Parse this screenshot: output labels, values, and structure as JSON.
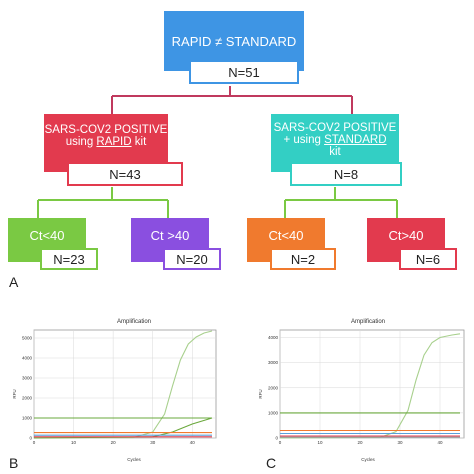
{
  "colors": {
    "top": "#3e95e4",
    "rapid": "#e23a4e",
    "standard": "#33cfc4",
    "green": "#7ac943",
    "purple": "#8a4fe0",
    "orange": "#f07a2e",
    "red": "#e23a4e",
    "connector": "#c0395e"
  },
  "diagram": {
    "top": {
      "title": "RAPID ≠ STANDARD",
      "n": "N=51"
    },
    "rapid": {
      "line1": "SARS-COV2 POSITIVE",
      "line2_pre": "using ",
      "line2_u": "RAPID",
      "line2_post": " kit",
      "n": "N=43"
    },
    "standard": {
      "line1": "SARS-COV2 POSITIVE",
      "line2_pre": "+ using ",
      "line2_u": "STANDARD",
      "line3": "kit",
      "n": "N=8"
    },
    "leaves": [
      {
        "label": "Ct<40",
        "n": "N=23"
      },
      {
        "label": "Ct >40",
        "n": "N=20"
      },
      {
        "label": "Ct<40",
        "n": "N=2"
      },
      {
        "label": "Ct>40",
        "n": "N=6"
      }
    ],
    "panel_label": "A"
  },
  "charts": {
    "B": {
      "panel_label": "B",
      "title": "Amplification",
      "ylabel": "RFU",
      "xlabel": "Cycles",
      "yticks": [
        "0",
        "1000",
        "2000",
        "3000",
        "4000",
        "5000"
      ],
      "xticks": [
        "0",
        "10",
        "20",
        "30",
        "40"
      ]
    },
    "C": {
      "panel_label": "C",
      "title": "Amplification",
      "ylabel": "RFU",
      "xlabel": "Cycles",
      "yticks": [
        "0",
        "1000",
        "2000",
        "3000",
        "4000"
      ],
      "xticks": [
        "0",
        "10",
        "20",
        "30",
        "40"
      ]
    }
  },
  "chart_data": [
    {
      "type": "line",
      "title": "Amplification",
      "xlabel": "Cycles",
      "ylabel": "RFU",
      "xlim": [
        0,
        46
      ],
      "ylim": [
        0,
        5400
      ],
      "grid": true,
      "series": [
        {
          "color": "#a8d08d",
          "x": [
            0,
            25,
            30,
            33,
            35,
            37,
            39,
            41,
            43,
            45
          ],
          "values": [
            0,
            20,
            300,
            1200,
            2600,
            3900,
            4700,
            5050,
            5250,
            5350
          ]
        },
        {
          "color": "#6aa83c",
          "x": [
            0,
            45
          ],
          "values": [
            1000,
            1000
          ]
        },
        {
          "color": "#6aa83c",
          "x": [
            0,
            30,
            35,
            40,
            45
          ],
          "values": [
            0,
            60,
            300,
            700,
            1000
          ]
        },
        {
          "color": "#f07a2e",
          "x": [
            0,
            45
          ],
          "values": [
            270,
            270
          ]
        },
        {
          "color": "#5aa0d8",
          "x": [
            0,
            45
          ],
          "values": [
            140,
            140
          ]
        },
        {
          "color": "#e23a4e",
          "x": [
            0,
            45
          ],
          "values": [
            60,
            60
          ]
        }
      ]
    },
    {
      "type": "line",
      "title": "Amplification",
      "xlabel": "Cycles",
      "ylabel": "RFU",
      "xlim": [
        0,
        46
      ],
      "ylim": [
        0,
        4300
      ],
      "grid": true,
      "series": [
        {
          "color": "#a8d08d",
          "x": [
            0,
            25,
            29,
            32,
            34,
            36,
            38,
            40,
            43,
            45
          ],
          "values": [
            0,
            20,
            250,
            1100,
            2300,
            3300,
            3800,
            4000,
            4100,
            4150
          ]
        },
        {
          "color": "#6aa83c",
          "x": [
            0,
            45
          ],
          "values": [
            1000,
            1000
          ]
        },
        {
          "color": "#f07a2e",
          "x": [
            0,
            45
          ],
          "values": [
            300,
            300
          ]
        },
        {
          "color": "#5aa0d8",
          "x": [
            0,
            45
          ],
          "values": [
            180,
            180
          ]
        },
        {
          "color": "#e23a4e",
          "x": [
            0,
            45
          ],
          "values": [
            80,
            80
          ]
        },
        {
          "color": "#999999",
          "x": [
            0,
            45
          ],
          "values": [
            30,
            30
          ]
        }
      ]
    }
  ]
}
